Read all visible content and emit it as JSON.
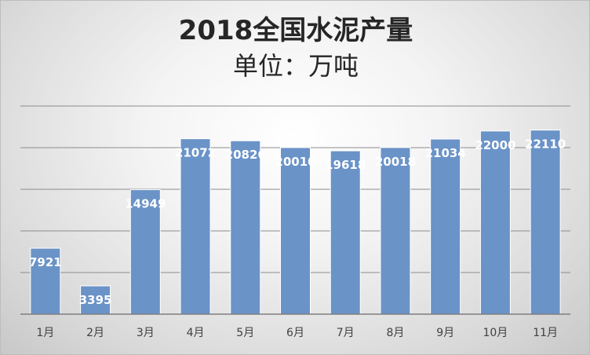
{
  "title": {
    "line1": "2018全国水泥产量",
    "line2": "单位：万吨"
  },
  "colors": {
    "bar_fill": "#6a93c8",
    "bar_stroke": "#ffffff",
    "gridline": "#8c8c8c",
    "axis": "#7f7f7f",
    "data_label": "#ffffff"
  },
  "chart_data": {
    "type": "bar",
    "title": "2018全国水泥产量",
    "subtitle": "单位：万吨",
    "categories": [
      "1月",
      "2月",
      "3月",
      "4月",
      "5月",
      "6月",
      "7月",
      "8月",
      "9月",
      "10月",
      "11月"
    ],
    "values": [
      7921,
      3395,
      14949,
      21072,
      20826,
      20010,
      19618,
      20018,
      21034,
      22000,
      22110
    ],
    "data_labels": [
      "7921",
      "3395",
      "14949",
      "21072",
      "20826",
      "20010",
      "19618",
      "20018",
      "21034",
      "22000",
      "22110"
    ],
    "xlabel": "",
    "ylabel": "",
    "ylim": [
      0,
      25000
    ],
    "ytick_step": 5000,
    "y_tick_labels_visible": false,
    "grid": true,
    "legend": "none"
  }
}
